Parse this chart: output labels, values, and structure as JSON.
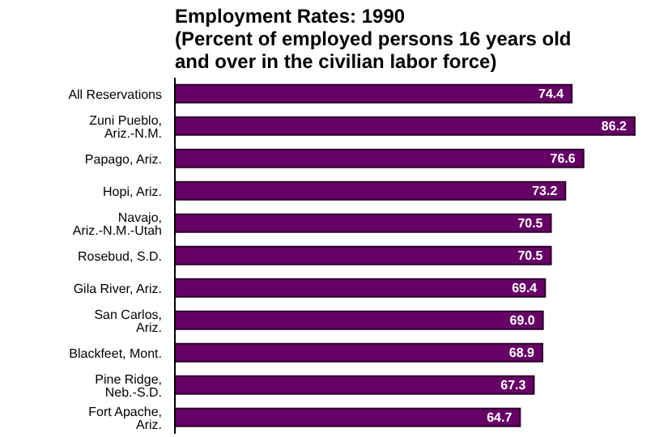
{
  "chart_data": {
    "type": "bar",
    "orientation": "horizontal",
    "title": "Employment Rates: 1990",
    "subtitle": "(Percent of employed persons 16 years old and over in the civilian labor force)",
    "categories": [
      "All Reservations",
      "Zuni Pueblo, Ariz.-N.M.",
      "Papago, Ariz.",
      "Hopi, Ariz.",
      "Navajo, Ariz.-N.M.-Utah",
      "Rosebud, S.D.",
      "Gila River, Ariz.",
      "San Carlos, Ariz.",
      "Blackfeet, Mont.",
      "Pine Ridge, Neb.-S.D.",
      "Fort Apache, Ariz."
    ],
    "values": [
      74.4,
      86.2,
      76.6,
      73.2,
      70.5,
      70.5,
      69.4,
      69.0,
      68.9,
      67.3,
      64.7
    ],
    "value_labels": [
      "74.4",
      "86.2",
      "76.6",
      "73.2",
      "70.5",
      "70.5",
      "69.4",
      "69.0",
      "68.9",
      "67.3",
      "64.7"
    ],
    "color": "#660066",
    "grid": false,
    "legend": false
  }
}
